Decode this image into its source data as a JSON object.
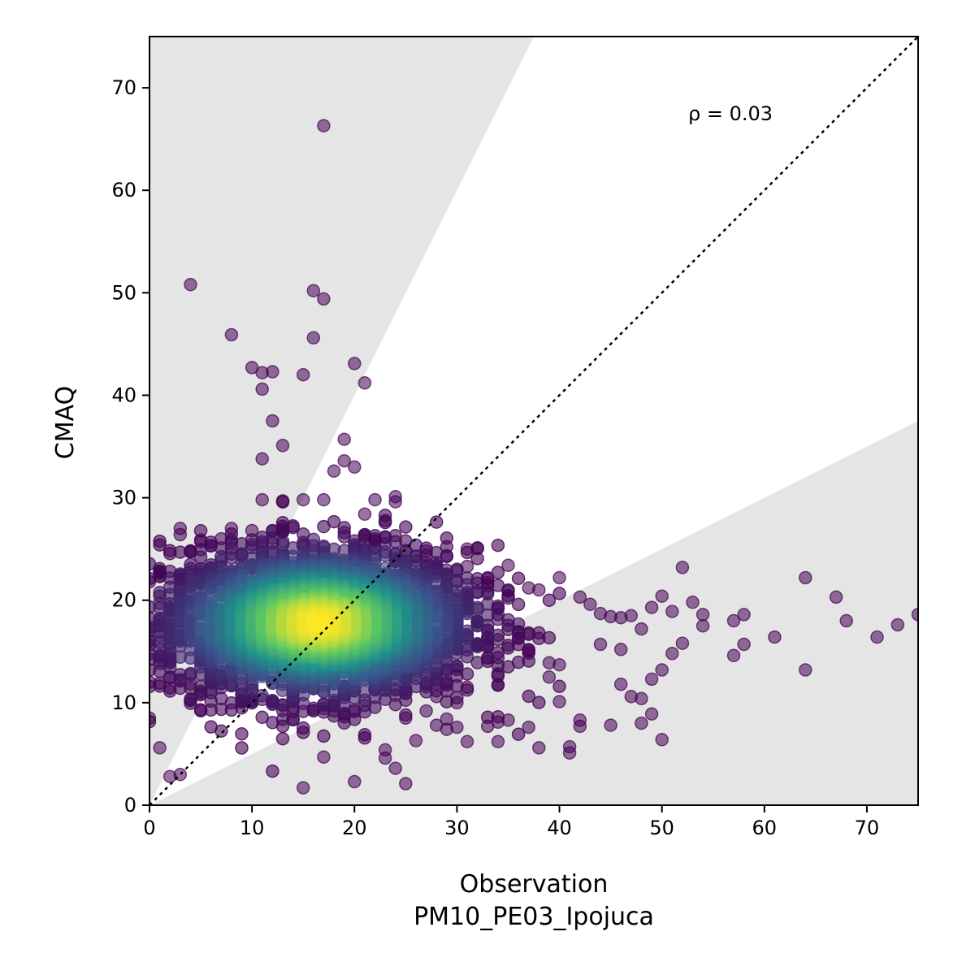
{
  "chart_data": {
    "type": "scatter",
    "title": "",
    "xlabel": "Observation",
    "xlabel2": "PM10_PE03_Ipojuca",
    "ylabel": "CMAQ",
    "xlim": [
      0,
      75
    ],
    "ylim": [
      0,
      75
    ],
    "xticks": [
      "0",
      "10",
      "20",
      "30",
      "40",
      "50",
      "60",
      "70"
    ],
    "yticks": [
      "0",
      "10",
      "20",
      "30",
      "40",
      "50",
      "60",
      "70"
    ],
    "annotation": "ρ = 0.03",
    "grid": false,
    "reference_line": {
      "style": "dotted",
      "slope": 1,
      "color": "#000000"
    },
    "shaded_regions": {
      "upper_slope": 2,
      "lower_slope": 0.5,
      "color": "#e5e5e5"
    },
    "colormap": [
      "#440154",
      "#3b528b",
      "#21918c",
      "#5ec962",
      "#fde725"
    ],
    "density_center": [
      16.5,
      17.8
    ],
    "outlier_points": [
      [
        17,
        66.3
      ],
      [
        4,
        50.8
      ],
      [
        16,
        50.2
      ],
      [
        17,
        49.4
      ],
      [
        8,
        45.9
      ],
      [
        16,
        45.6
      ],
      [
        10,
        42.7
      ],
      [
        11,
        42.2
      ],
      [
        12,
        42.3
      ],
      [
        15,
        42
      ],
      [
        20,
        43.1
      ],
      [
        21,
        41.2
      ],
      [
        11,
        40.6
      ],
      [
        12,
        37.5
      ],
      [
        13,
        35.1
      ],
      [
        19,
        35.7
      ],
      [
        11,
        33.8
      ],
      [
        19,
        33.6
      ],
      [
        18,
        32.6
      ],
      [
        20,
        33
      ],
      [
        11,
        29.8
      ],
      [
        15,
        29.8
      ],
      [
        17,
        29.8
      ],
      [
        22,
        29.8
      ],
      [
        24,
        30.1
      ],
      [
        24,
        29.6
      ],
      [
        3,
        27
      ],
      [
        3,
        26.4
      ],
      [
        4,
        24.8
      ],
      [
        5,
        25.7
      ],
      [
        7,
        26
      ],
      [
        8,
        27
      ],
      [
        10,
        26.8
      ],
      [
        21,
        28.4
      ],
      [
        22,
        26
      ],
      [
        27,
        24.4
      ],
      [
        31,
        25
      ],
      [
        31,
        23.3
      ],
      [
        33,
        22.2
      ],
      [
        33,
        21.7
      ],
      [
        35,
        23.4
      ],
      [
        35,
        21
      ],
      [
        37,
        21.2
      ],
      [
        38,
        21
      ],
      [
        40,
        22.2
      ],
      [
        42,
        20.3
      ],
      [
        43,
        19.6
      ],
      [
        44,
        18.7
      ],
      [
        45,
        18.4
      ],
      [
        46,
        18.3
      ],
      [
        47,
        18.5
      ],
      [
        48,
        17.2
      ],
      [
        49,
        19.3
      ],
      [
        50,
        20.4
      ],
      [
        51,
        18.9
      ],
      [
        52,
        23.2
      ],
      [
        53,
        19.8
      ],
      [
        54,
        18.6
      ],
      [
        54,
        17.5
      ],
      [
        57,
        18
      ],
      [
        58,
        18.6
      ],
      [
        57,
        14.6
      ],
      [
        58,
        15.7
      ],
      [
        61,
        16.4
      ],
      [
        64,
        22.2
      ],
      [
        64,
        13.2
      ],
      [
        67,
        20.3
      ],
      [
        68,
        18
      ],
      [
        71,
        16.4
      ],
      [
        73,
        17.6
      ],
      [
        75,
        18.6
      ],
      [
        51,
        14.8
      ],
      [
        52,
        15.8
      ],
      [
        50,
        13.2
      ],
      [
        49,
        12.3
      ],
      [
        48,
        10.4
      ],
      [
        49,
        8.9
      ],
      [
        48,
        8
      ],
      [
        50,
        6.4
      ],
      [
        45,
        7.8
      ],
      [
        46,
        11.8
      ],
      [
        42,
        8.3
      ],
      [
        42,
        7.7
      ],
      [
        41,
        5.7
      ],
      [
        41,
        5.1
      ],
      [
        40,
        10.1
      ],
      [
        38,
        5.6
      ],
      [
        37,
        7.6
      ],
      [
        34,
        8.1
      ],
      [
        34,
        6.2
      ],
      [
        31,
        6.2
      ],
      [
        30,
        7.6
      ],
      [
        29,
        7.4
      ],
      [
        28,
        7.8
      ],
      [
        26,
        6.3
      ],
      [
        25,
        8.5
      ],
      [
        23,
        5.4
      ],
      [
        23,
        4.6
      ],
      [
        24,
        3.6
      ],
      [
        25,
        2.1
      ],
      [
        20,
        2.3
      ],
      [
        15,
        1.7
      ],
      [
        17,
        4.7
      ],
      [
        3,
        3
      ],
      [
        2,
        2.8
      ],
      [
        1,
        5.6
      ],
      [
        0,
        21.8
      ],
      [
        1,
        22.8
      ],
      [
        0,
        8.5
      ],
      [
        0,
        12
      ],
      [
        39,
        13.9
      ],
      [
        39,
        12.5
      ],
      [
        40,
        13.7
      ],
      [
        47,
        10.6
      ],
      [
        44,
        15.7
      ],
      [
        46,
        15.2
      ],
      [
        30,
        12.6
      ],
      [
        31,
        11.5
      ],
      [
        30,
        10
      ],
      [
        29,
        8.4
      ],
      [
        27,
        9.2
      ],
      [
        28,
        10.6
      ],
      [
        33,
        7.7
      ],
      [
        35,
        8.3
      ]
    ]
  }
}
